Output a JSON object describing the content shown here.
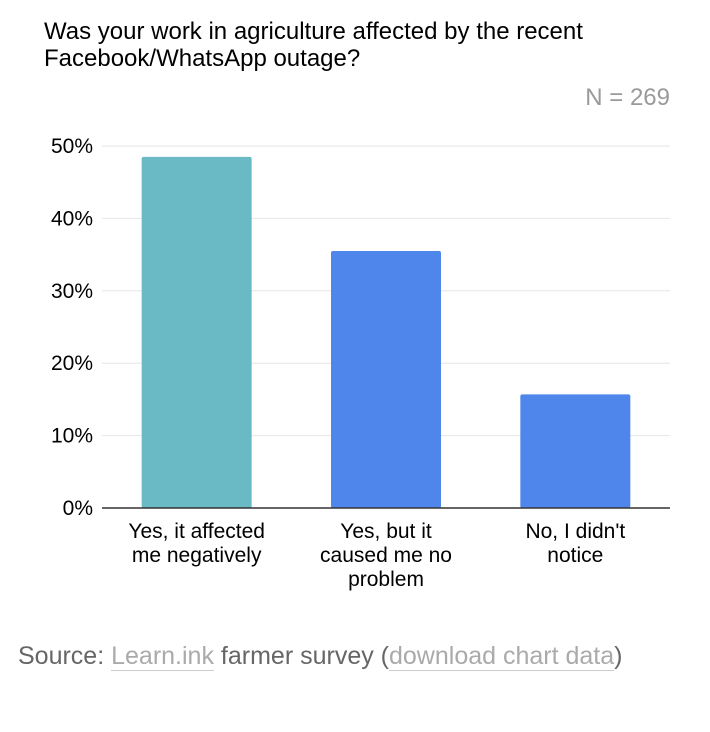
{
  "chart_data": {
    "type": "bar",
    "title": "Was your work in agriculture affected by the recent Facebook/WhatsApp outage?",
    "subtitle": "N = 269",
    "categories": [
      [
        "Yes, it affected",
        "me negatively"
      ],
      [
        "Yes, but it",
        "caused me no",
        "problem"
      ],
      [
        "No, I didn't",
        "notice"
      ]
    ],
    "values": [
      48.5,
      35.5,
      15.7
    ],
    "bar_colors": [
      "#69bac4",
      "#4f86ec",
      "#4f86ec"
    ],
    "yticks": [
      "0%",
      "10%",
      "20%",
      "30%",
      "40%",
      "50%"
    ],
    "ytick_values": [
      0,
      10,
      20,
      30,
      40,
      50
    ],
    "ylim": [
      0,
      50
    ],
    "grid": true,
    "legend": "none"
  },
  "source": {
    "prefix": "Source: ",
    "link1": "Learn.ink",
    "middle": " farmer survey (",
    "link2": "download chart data",
    "suffix": ")"
  }
}
